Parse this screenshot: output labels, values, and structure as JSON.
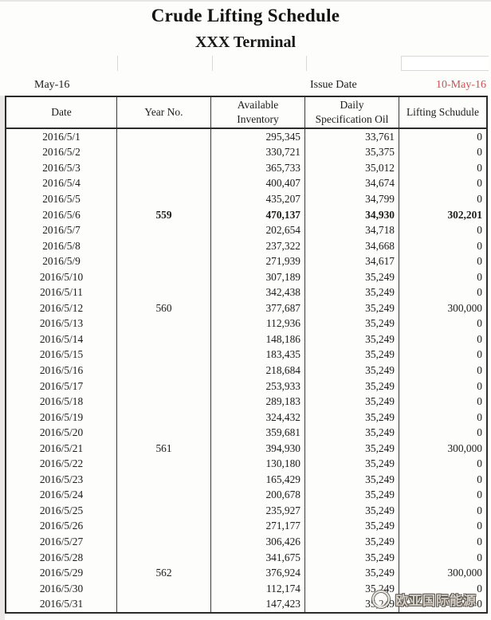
{
  "header": {
    "title": "Crude Lifting Schedule",
    "subtitle": "XXX Terminal"
  },
  "meta": {
    "month_label": "May-16",
    "issue_date_label": "Issue Date",
    "issue_date_value": "10-May-16",
    "issue_date_color": "#d14f4f"
  },
  "table": {
    "columns": [
      {
        "key": "date",
        "lines": [
          "Date"
        ]
      },
      {
        "key": "year-no",
        "lines": [
          "Year No."
        ]
      },
      {
        "key": "available-inventory",
        "lines": [
          "Available",
          "Inventory"
        ]
      },
      {
        "key": "daily-specification-oil",
        "lines": [
          "Daily",
          "Specification Oil"
        ]
      },
      {
        "key": "lifting-schedule",
        "lines": [
          "Lifting Schudule"
        ]
      }
    ],
    "rows": [
      {
        "date": "2016/5/1",
        "year_no": "",
        "available_inventory": "295,345",
        "daily_specification_oil": "33,761",
        "lifting_schedule": "0",
        "emphasis": false
      },
      {
        "date": "2016/5/2",
        "year_no": "",
        "available_inventory": "330,721",
        "daily_specification_oil": "35,375",
        "lifting_schedule": "0",
        "emphasis": false
      },
      {
        "date": "2016/5/3",
        "year_no": "",
        "available_inventory": "365,733",
        "daily_specification_oil": "35,012",
        "lifting_schedule": "0",
        "emphasis": false
      },
      {
        "date": "2016/5/4",
        "year_no": "",
        "available_inventory": "400,407",
        "daily_specification_oil": "34,674",
        "lifting_schedule": "0",
        "emphasis": false
      },
      {
        "date": "2016/5/5",
        "year_no": "",
        "available_inventory": "435,207",
        "daily_specification_oil": "34,799",
        "lifting_schedule": "0",
        "emphasis": false
      },
      {
        "date": "2016/5/6",
        "year_no": "559",
        "available_inventory": "470,137",
        "daily_specification_oil": "34,930",
        "lifting_schedule": "302,201",
        "emphasis": true
      },
      {
        "date": "2016/5/7",
        "year_no": "",
        "available_inventory": "202,654",
        "daily_specification_oil": "34,718",
        "lifting_schedule": "0",
        "emphasis": false
      },
      {
        "date": "2016/5/8",
        "year_no": "",
        "available_inventory": "237,322",
        "daily_specification_oil": "34,668",
        "lifting_schedule": "0",
        "emphasis": false
      },
      {
        "date": "2016/5/9",
        "year_no": "",
        "available_inventory": "271,939",
        "daily_specification_oil": "34,617",
        "lifting_schedule": "0",
        "emphasis": false
      },
      {
        "date": "2016/5/10",
        "year_no": "",
        "available_inventory": "307,189",
        "daily_specification_oil": "35,249",
        "lifting_schedule": "0",
        "emphasis": false
      },
      {
        "date": "2016/5/11",
        "year_no": "",
        "available_inventory": "342,438",
        "daily_specification_oil": "35,249",
        "lifting_schedule": "0",
        "emphasis": false
      },
      {
        "date": "2016/5/12",
        "year_no": "560",
        "available_inventory": "377,687",
        "daily_specification_oil": "35,249",
        "lifting_schedule": "300,000",
        "emphasis": false
      },
      {
        "date": "2016/5/13",
        "year_no": "",
        "available_inventory": "112,936",
        "daily_specification_oil": "35,249",
        "lifting_schedule": "0",
        "emphasis": false
      },
      {
        "date": "2016/5/14",
        "year_no": "",
        "available_inventory": "148,186",
        "daily_specification_oil": "35,249",
        "lifting_schedule": "0",
        "emphasis": false
      },
      {
        "date": "2016/5/15",
        "year_no": "",
        "available_inventory": "183,435",
        "daily_specification_oil": "35,249",
        "lifting_schedule": "0",
        "emphasis": false
      },
      {
        "date": "2016/5/16",
        "year_no": "",
        "available_inventory": "218,684",
        "daily_specification_oil": "35,249",
        "lifting_schedule": "0",
        "emphasis": false
      },
      {
        "date": "2016/5/17",
        "year_no": "",
        "available_inventory": "253,933",
        "daily_specification_oil": "35,249",
        "lifting_schedule": "0",
        "emphasis": false
      },
      {
        "date": "2016/5/18",
        "year_no": "",
        "available_inventory": "289,183",
        "daily_specification_oil": "35,249",
        "lifting_schedule": "0",
        "emphasis": false
      },
      {
        "date": "2016/5/19",
        "year_no": "",
        "available_inventory": "324,432",
        "daily_specification_oil": "35,249",
        "lifting_schedule": "0",
        "emphasis": false
      },
      {
        "date": "2016/5/20",
        "year_no": "",
        "available_inventory": "359,681",
        "daily_specification_oil": "35,249",
        "lifting_schedule": "0",
        "emphasis": false
      },
      {
        "date": "2016/5/21",
        "year_no": "561",
        "available_inventory": "394,930",
        "daily_specification_oil": "35,249",
        "lifting_schedule": "300,000",
        "emphasis": false
      },
      {
        "date": "2016/5/22",
        "year_no": "",
        "available_inventory": "130,180",
        "daily_specification_oil": "35,249",
        "lifting_schedule": "0",
        "emphasis": false
      },
      {
        "date": "2016/5/23",
        "year_no": "",
        "available_inventory": "165,429",
        "daily_specification_oil": "35,249",
        "lifting_schedule": "0",
        "emphasis": false
      },
      {
        "date": "2016/5/24",
        "year_no": "",
        "available_inventory": "200,678",
        "daily_specification_oil": "35,249",
        "lifting_schedule": "0",
        "emphasis": false
      },
      {
        "date": "2016/5/25",
        "year_no": "",
        "available_inventory": "235,927",
        "daily_specification_oil": "35,249",
        "lifting_schedule": "0",
        "emphasis": false
      },
      {
        "date": "2016/5/26",
        "year_no": "",
        "available_inventory": "271,177",
        "daily_specification_oil": "35,249",
        "lifting_schedule": "0",
        "emphasis": false
      },
      {
        "date": "2016/5/27",
        "year_no": "",
        "available_inventory": "306,426",
        "daily_specification_oil": "35,249",
        "lifting_schedule": "0",
        "emphasis": false
      },
      {
        "date": "2016/5/28",
        "year_no": "",
        "available_inventory": "341,675",
        "daily_specification_oil": "35,249",
        "lifting_schedule": "0",
        "emphasis": false
      },
      {
        "date": "2016/5/29",
        "year_no": "562",
        "available_inventory": "376,924",
        "daily_specification_oil": "35,249",
        "lifting_schedule": "300,000",
        "emphasis": false
      },
      {
        "date": "2016/5/30",
        "year_no": "",
        "available_inventory": "112,174",
        "daily_specification_oil": "35,249",
        "lifting_schedule": "0",
        "emphasis": false
      },
      {
        "date": "2016/5/31",
        "year_no": "",
        "available_inventory": "147,423",
        "daily_specification_oil": "35,249",
        "lifting_schedule": "0",
        "emphasis": false
      }
    ]
  },
  "watermark": {
    "text": "欧亚国际能源",
    "logo_icon": "globe-logo"
  }
}
